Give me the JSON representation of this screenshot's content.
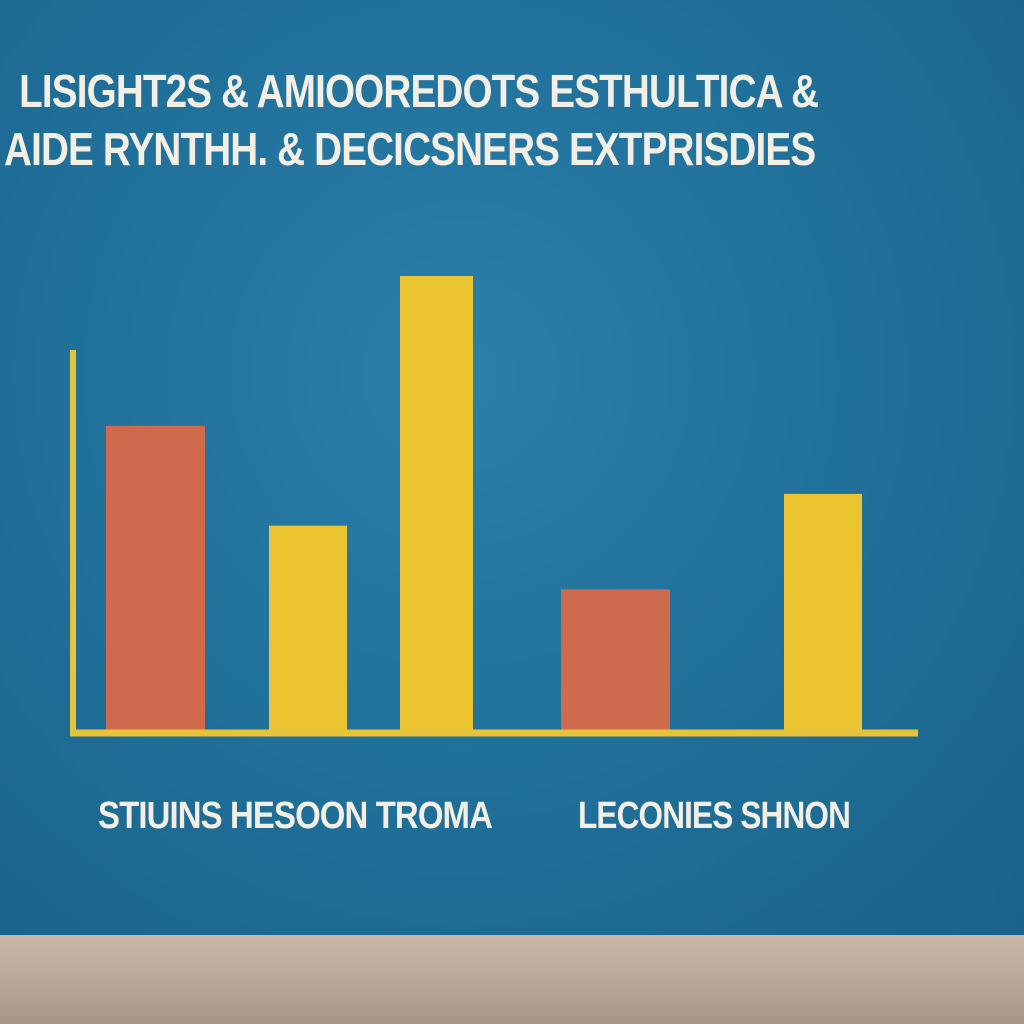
{
  "title_lines": [
    "LISIGHT2S & AMIOOREDOTS ESTHULTICA &",
    "AIDE RYNTHH. & DECICSNERS EXTPRISDIES"
  ],
  "chart_data": {
    "type": "bar",
    "title": "LISIGHT2S & AMIOOREDOTS ESTHULTICA & AIDE RYNTHH. & DECICSNERS EXTPRISDIES",
    "xlabel": "",
    "ylabel": "",
    "ylim": [
      0,
      100
    ],
    "grid": false,
    "category_labels": [
      "STIUINS HESOON TROMA",
      "LECONIES SHNON"
    ],
    "bars": [
      {
        "value": 67,
        "color": "#cf6a4c"
      },
      {
        "value": 45,
        "color": "#eac431"
      },
      {
        "value": 100,
        "color": "#eac431"
      },
      {
        "value": 31,
        "color": "#cf6a4c"
      },
      {
        "value": 52,
        "color": "#eac431"
      }
    ],
    "axis_color": "#e7c33a"
  }
}
